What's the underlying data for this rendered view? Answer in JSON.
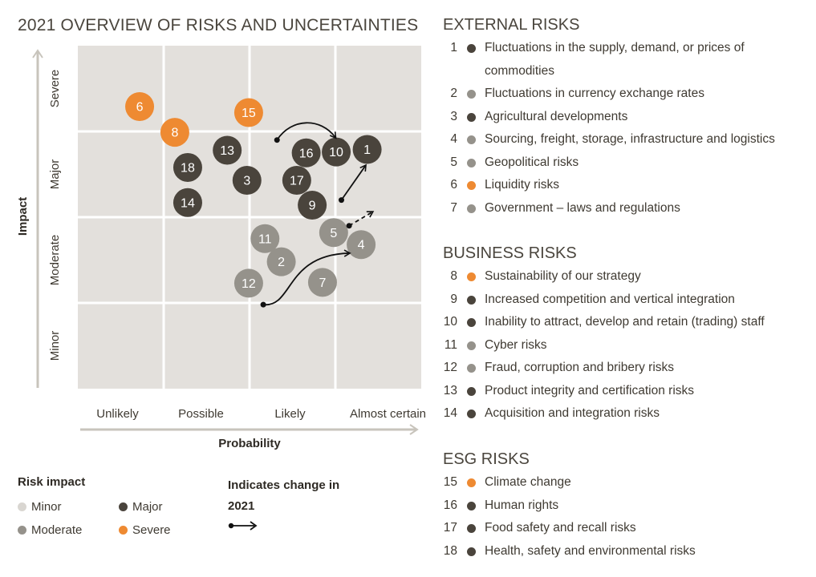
{
  "title": "2021 OVERVIEW OF RISKS AND UNCERTAINTIES",
  "colors": {
    "grid_bg": "#e3e0dc",
    "axis": "#c8c4bc",
    "minor": "#d9d6d1",
    "moderate": "#95928b",
    "major": "#4a443c",
    "severe": "#ee8a32"
  },
  "chart_data": {
    "type": "scatter",
    "xlabel": "Probability",
    "ylabel": "Impact",
    "x_categories": [
      "Unlikely",
      "Possible",
      "Likely",
      "Almost certain"
    ],
    "y_categories": [
      "Minor",
      "Moderate",
      "Major",
      "Severe"
    ],
    "xlim": [
      0,
      4
    ],
    "ylim": [
      0,
      4
    ],
    "grid": true,
    "points": [
      {
        "id": "1",
        "x": 3.37,
        "y": 2.79,
        "impact": "major"
      },
      {
        "id": "2",
        "x": 2.37,
        "y": 1.48,
        "impact": "moderate"
      },
      {
        "id": "3",
        "x": 1.97,
        "y": 2.43,
        "impact": "major"
      },
      {
        "id": "4",
        "x": 3.3,
        "y": 1.68,
        "impact": "moderate"
      },
      {
        "id": "5",
        "x": 2.98,
        "y": 1.82,
        "impact": "moderate"
      },
      {
        "id": "6",
        "x": 0.72,
        "y": 3.29,
        "impact": "severe"
      },
      {
        "id": "7",
        "x": 2.85,
        "y": 1.24,
        "impact": "moderate"
      },
      {
        "id": "8",
        "x": 1.13,
        "y": 2.99,
        "impact": "severe"
      },
      {
        "id": "9",
        "x": 2.73,
        "y": 2.14,
        "impact": "major"
      },
      {
        "id": "10",
        "x": 3.01,
        "y": 2.76,
        "impact": "major"
      },
      {
        "id": "11",
        "x": 2.18,
        "y": 1.75,
        "impact": "moderate"
      },
      {
        "id": "12",
        "x": 1.99,
        "y": 1.23,
        "impact": "moderate"
      },
      {
        "id": "13",
        "x": 1.74,
        "y": 2.78,
        "impact": "major"
      },
      {
        "id": "14",
        "x": 1.28,
        "y": 2.17,
        "impact": "major"
      },
      {
        "id": "15",
        "x": 1.99,
        "y": 3.22,
        "impact": "severe"
      },
      {
        "id": "16",
        "x": 2.66,
        "y": 2.75,
        "impact": "major"
      },
      {
        "id": "17",
        "x": 2.55,
        "y": 2.43,
        "impact": "major"
      },
      {
        "id": "18",
        "x": 1.28,
        "y": 2.58,
        "impact": "major"
      }
    ],
    "change_arrows": [
      {
        "from": [
          2.32,
          2.9
        ],
        "to": [
          3.0,
          2.93
        ],
        "style": "solid"
      },
      {
        "from": [
          3.07,
          2.2
        ],
        "to": [
          3.35,
          2.6
        ],
        "style": "solid"
      },
      {
        "from": [
          3.16,
          1.9
        ],
        "to": [
          3.43,
          2.06
        ],
        "style": "dashed"
      },
      {
        "from": [
          2.16,
          0.98
        ],
        "to": [
          3.16,
          1.58
        ],
        "style": "solid"
      }
    ]
  },
  "legend": {
    "title": "Risk impact",
    "items": [
      {
        "label": "Minor",
        "impact": "minor"
      },
      {
        "label": "Major",
        "impact": "major"
      },
      {
        "label": "Moderate",
        "impact": "moderate"
      },
      {
        "label": "Severe",
        "impact": "severe"
      }
    ],
    "change_title": "Indicates change in 2021"
  },
  "sections": [
    {
      "title": "EXTERNAL RISKS",
      "risks": [
        {
          "num": "1",
          "label": "Fluctuations in the supply, demand, or prices of commodities",
          "impact": "major"
        },
        {
          "num": "2",
          "label": "Fluctuations in currency exchange rates",
          "impact": "moderate"
        },
        {
          "num": "3",
          "label": "Agricultural developments",
          "impact": "major"
        },
        {
          "num": "4",
          "label": "Sourcing, freight, storage, infrastructure and logistics",
          "impact": "moderate"
        },
        {
          "num": "5",
          "label": "Geopolitical risks",
          "impact": "moderate"
        },
        {
          "num": "6",
          "label": "Liquidity risks",
          "impact": "severe"
        },
        {
          "num": "7",
          "label": "Government – laws and regulations",
          "impact": "moderate"
        }
      ]
    },
    {
      "title": "BUSINESS RISKS",
      "risks": [
        {
          "num": "8",
          "label": "Sustainability of our strategy",
          "impact": "severe"
        },
        {
          "num": "9",
          "label": "Increased competition and vertical integration",
          "impact": "major"
        },
        {
          "num": "10",
          "label": "Inability to attract, develop and retain (trading) staff",
          "impact": "major"
        },
        {
          "num": "11",
          "label": "Cyber risks",
          "impact": "moderate"
        },
        {
          "num": "12",
          "label": "Fraud, corruption and bribery risks",
          "impact": "moderate"
        },
        {
          "num": "13",
          "label": "Product integrity and certification risks",
          "impact": "major"
        },
        {
          "num": "14",
          "label": "Acquisition and integration risks",
          "impact": "major"
        }
      ]
    },
    {
      "title": "ESG RISKS",
      "risks": [
        {
          "num": "15",
          "label": "Climate change",
          "impact": "severe"
        },
        {
          "num": "16",
          "label": "Human rights",
          "impact": "major"
        },
        {
          "num": "17",
          "label": "Food safety and recall risks",
          "impact": "major"
        },
        {
          "num": "18",
          "label": "Health, safety and environmental risks",
          "impact": "major"
        }
      ]
    }
  ]
}
